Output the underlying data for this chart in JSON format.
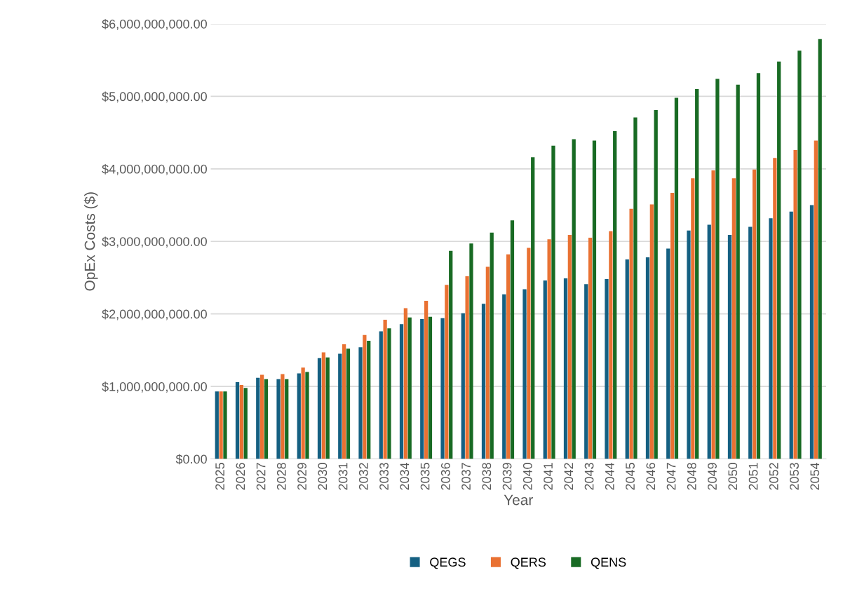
{
  "chart_data": {
    "type": "bar",
    "xlabel": "Year",
    "ylabel": "OpEx Costs ($)",
    "categories": [
      "2025",
      "2026",
      "2027",
      "2028",
      "2029",
      "2030",
      "2031",
      "2032",
      "2033",
      "2034",
      "2035",
      "2036",
      "2037",
      "2038",
      "2039",
      "2040",
      "2041",
      "2042",
      "2043",
      "2044",
      "2045",
      "2046",
      "2047",
      "2048",
      "2049",
      "2050",
      "2051",
      "2052",
      "2053",
      "2054"
    ],
    "series": [
      {
        "name": "QEGS",
        "color": "#156082",
        "values": [
          930000000,
          1060000000,
          1120000000,
          1100000000,
          1180000000,
          1390000000,
          1450000000,
          1540000000,
          1760000000,
          1860000000,
          1930000000,
          1940000000,
          2010000000,
          2140000000,
          2270000000,
          2340000000,
          2460000000,
          2490000000,
          2410000000,
          2480000000,
          2750000000,
          2780000000,
          2900000000,
          3150000000,
          3230000000,
          3090000000,
          3200000000,
          3320000000,
          3410000000,
          3500000000
        ]
      },
      {
        "name": "QERS",
        "color": "#e97132",
        "values": [
          930000000,
          1020000000,
          1160000000,
          1170000000,
          1260000000,
          1470000000,
          1580000000,
          1710000000,
          1920000000,
          2080000000,
          2180000000,
          2400000000,
          2520000000,
          2650000000,
          2820000000,
          2910000000,
          3030000000,
          3090000000,
          3050000000,
          3140000000,
          3450000000,
          3510000000,
          3670000000,
          3870000000,
          3980000000,
          3870000000,
          3990000000,
          4150000000,
          4260000000,
          4390000000
        ]
      },
      {
        "name": "QENS",
        "color": "#196b24",
        "values": [
          930000000,
          980000000,
          1100000000,
          1100000000,
          1200000000,
          1400000000,
          1520000000,
          1630000000,
          1800000000,
          1950000000,
          1960000000,
          2870000000,
          2970000000,
          3120000000,
          3290000000,
          4160000000,
          4320000000,
          4410000000,
          4390000000,
          4520000000,
          4710000000,
          4810000000,
          4980000000,
          5100000000,
          5240000000,
          5160000000,
          5320000000,
          5480000000,
          5630000000,
          5790000000
        ]
      }
    ],
    "ylim": [
      0,
      6000000000
    ],
    "yticks": [
      {
        "value": 0,
        "label": "$0.00"
      },
      {
        "value": 1000000000,
        "label": "$1,000,000,000.00"
      },
      {
        "value": 2000000000,
        "label": "$2,000,000,000.00"
      },
      {
        "value": 3000000000,
        "label": "$3,000,000,000.00"
      },
      {
        "value": 4000000000,
        "label": "$4,000,000,000.00"
      },
      {
        "value": 5000000000,
        "label": "$5,000,000,000.00"
      },
      {
        "value": 6000000000,
        "label": "$6,000,000,000.00"
      }
    ],
    "grid": "y",
    "legend": "bottom"
  }
}
